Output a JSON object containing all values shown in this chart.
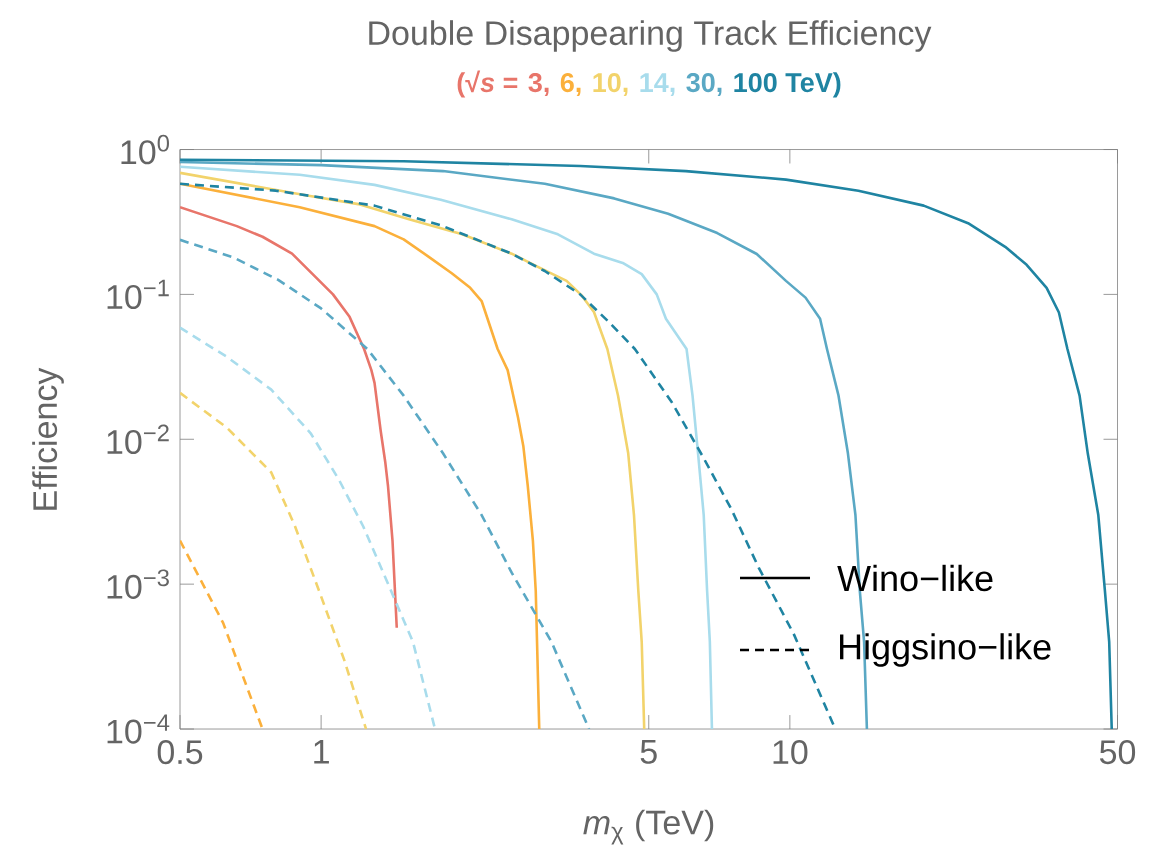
{
  "chart_data": {
    "type": "line",
    "title": "Double Disappearing Track Efficiency",
    "legend_title": "(√*s* =",
    "xlabel": "*m*$_{χ}$ (TeV)",
    "ylabel": "Efficiency",
    "log": "xy",
    "xlim": [
      0.5,
      50
    ],
    "ylim": [
      0.0001,
      1
    ],
    "xticks": [
      0.5,
      1,
      5,
      10,
      50
    ],
    "yticks": [
      {
        "value": 1,
        "label": "10$^{0}$"
      },
      {
        "value": 0.1,
        "label": "10$^{−1}$"
      },
      {
        "value": 0.01,
        "label": "10$^{−2}$"
      },
      {
        "value": 0.001,
        "label": "10$^{−3}$"
      },
      {
        "value": 0.0001,
        "label": "10$^{−4}$"
      }
    ],
    "annotations": [
      "Wino−like",
      "Higgsino−like"
    ],
    "series": [
      {
        "name": "3,",
        "color": "#e8756a",
        "line_style": "solid",
        "x": [
          0.5,
          0.661,
          0.75,
          0.867,
          1.06,
          1.15,
          1.235,
          1.28,
          1.3,
          1.34,
          1.37,
          1.389,
          1.42,
          1.45
        ],
        "values": [
          0.4,
          0.296,
          0.25,
          0.191,
          0.1,
          0.07,
          0.042,
          0.03,
          0.0245,
          0.0114,
          0.007,
          0.00476,
          0.002,
          0.0005
        ]
      },
      {
        "name": "6,",
        "color": "#fbb03b",
        "line_style": "solid",
        "x": [
          0.5,
          0.9,
          1.3,
          1.5,
          1.7,
          1.9,
          2.08,
          2.2,
          2.38,
          2.5,
          2.63,
          2.7,
          2.76,
          2.83,
          2.87,
          2.92
        ],
        "values": [
          0.58,
          0.4,
          0.296,
          0.24,
          0.181,
          0.14,
          0.111,
          0.09,
          0.042,
          0.03,
          0.0142,
          0.009,
          0.00476,
          0.002,
          0.0009,
          0.0001
        ]
      },
      {
        "name": "10,",
        "color": "#f2d36b",
        "line_style": "solid",
        "x": [
          0.5,
          0.927,
          1.2,
          1.54,
          2.0,
          2.55,
          2.9,
          3.34,
          3.6,
          3.82,
          4.08,
          4.3,
          4.52,
          4.65,
          4.75,
          4.83,
          4.89
        ],
        "values": [
          0.69,
          0.484,
          0.42,
          0.33,
          0.26,
          0.191,
          0.155,
          0.124,
          0.098,
          0.0756,
          0.042,
          0.02,
          0.008,
          0.003,
          0.0009,
          0.0004,
          0.0001
        ]
      },
      {
        "name": "14,",
        "color": "#a8dcec",
        "line_style": "solid",
        "x": [
          0.5,
          0.9,
          1.3,
          1.8,
          2.55,
          3.2,
          3.82,
          4.4,
          4.83,
          5.2,
          5.44,
          6.02,
          6.2,
          6.37,
          6.55,
          6.66,
          6.75,
          6.82
        ],
        "values": [
          0.76,
          0.67,
          0.57,
          0.45,
          0.33,
          0.26,
          0.191,
          0.165,
          0.138,
          0.1,
          0.068,
          0.042,
          0.02,
          0.008,
          0.003,
          0.0009,
          0.0004,
          0.0001
        ]
      },
      {
        "name": "30,",
        "color": "#5aa8c4",
        "line_style": "solid",
        "x": [
          0.5,
          1.0,
          1.82,
          3.0,
          4.22,
          5.5,
          7.0,
          8.5,
          9.81,
          10.8,
          11.6,
          12.0,
          12.7,
          13.3,
          13.8,
          14.1,
          14.4,
          14.6
        ],
        "values": [
          0.82,
          0.78,
          0.71,
          0.58,
          0.46,
          0.36,
          0.265,
          0.19,
          0.124,
          0.095,
          0.068,
          0.042,
          0.02,
          0.008,
          0.003,
          0.0009,
          0.0004,
          0.0001
        ]
      },
      {
        "name": "100 TeV)",
        "color": "#1f84a2",
        "line_style": "solid",
        "x": [
          0.5,
          1.5,
          3.57,
          6.0,
          9.81,
          14.0,
          19.3,
          24.0,
          28.8,
          32.0,
          35.3,
          37.5,
          39.1,
          41.5,
          43.2,
          45.5,
          47.0,
          48.0,
          48.6
        ],
        "values": [
          0.85,
          0.83,
          0.77,
          0.71,
          0.62,
          0.52,
          0.41,
          0.31,
          0.213,
          0.16,
          0.111,
          0.075,
          0.042,
          0.02,
          0.008,
          0.003,
          0.0009,
          0.0004,
          0.0001
        ]
      },
      {
        "color": "#fbb03b",
        "line_style": "dashed",
        "x": [
          0.5,
          0.618,
          0.75
        ],
        "values": [
          0.002,
          0.00054,
          0.0001
        ]
      },
      {
        "color": "#f2d36b",
        "line_style": "dashed",
        "x": [
          0.5,
          0.63,
          0.783,
          0.88,
          0.99,
          1.12,
          1.247
        ],
        "values": [
          0.0209,
          0.012,
          0.0059,
          0.0025,
          0.0009,
          0.0003,
          0.0001
        ]
      },
      {
        "color": "#a8dcec",
        "line_style": "dashed",
        "x": [
          0.5,
          0.63,
          0.783,
          0.95,
          1.09,
          1.23,
          1.39,
          1.57,
          1.75
        ],
        "values": [
          0.0589,
          0.037,
          0.022,
          0.011,
          0.0053,
          0.0025,
          0.001,
          0.0004,
          0.0001
        ]
      },
      {
        "color": "#5aa8c4",
        "line_style": "dashed",
        "x": [
          0.5,
          0.65,
          0.81,
          1.0,
          1.255,
          1.5,
          1.82,
          2.2,
          2.55,
          3.1,
          3.73
        ],
        "values": [
          0.238,
          0.18,
          0.126,
          0.08,
          0.042,
          0.02,
          0.008,
          0.003,
          0.0012,
          0.0004,
          0.0001
        ]
      },
      {
        "color": "#1f84a2",
        "line_style": "dashed",
        "x": [
          0.5,
          0.8,
          1.3,
          1.8,
          2.55,
          3.0,
          3.57,
          4.1,
          4.67,
          5.6,
          6.55,
          7.5,
          8.58,
          10.2,
          12.5
        ],
        "values": [
          0.58,
          0.52,
          0.41,
          0.3,
          0.191,
          0.145,
          0.1,
          0.065,
          0.042,
          0.018,
          0.0074,
          0.0033,
          0.0013,
          0.00045,
          0.0001
        ]
      }
    ]
  }
}
